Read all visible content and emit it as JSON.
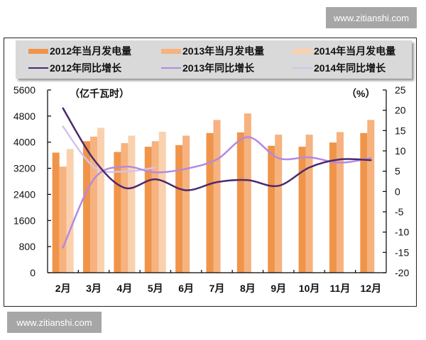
{
  "watermarks": {
    "top": "www.zitianshi.com",
    "bottom": "www.zitianshi.com"
  },
  "legend": [
    {
      "label": "2012年当月发电量",
      "kind": "bar",
      "color": "#f0944a"
    },
    {
      "label": "2013年当月发电量",
      "kind": "bar",
      "color": "#f6b27f"
    },
    {
      "label": "2014年当月发电量",
      "kind": "bar",
      "color": "#fad1af"
    },
    {
      "label": "2012年同比增长",
      "kind": "line",
      "color": "#4b2a6e"
    },
    {
      "label": "2013年同比增长",
      "kind": "line",
      "color": "#b28ae0"
    },
    {
      "label": "2014年同比增长",
      "kind": "line",
      "color": "#d3c3ec"
    }
  ],
  "axes": {
    "left_unit": "（亿千瓦时）",
    "right_unit": "（%）",
    "left_ticks": [
      "0",
      "800",
      "1600",
      "2400",
      "3200",
      "4000",
      "4800",
      "5600"
    ],
    "right_ticks": [
      "-20",
      "-15",
      "-10",
      "-5",
      "0",
      "5",
      "10",
      "15",
      "20",
      "25"
    ]
  },
  "chart_data": {
    "type": "bar",
    "title": "",
    "categories": [
      "2月",
      "3月",
      "4月",
      "5月",
      "6月",
      "7月",
      "8月",
      "9月",
      "10月",
      "11月",
      "12月"
    ],
    "xlabel": "",
    "ylabel": "亿千瓦时",
    "ylim": [
      0,
      5600
    ],
    "y2label": "%",
    "y2lim": [
      -20,
      25
    ],
    "grid": false,
    "legend_position": "top",
    "series": [
      {
        "name": "2012年当月发电量",
        "type": "bar",
        "axis": "left",
        "color": "#f0944a",
        "values": [
          3680,
          4030,
          3700,
          3860,
          3910,
          4280,
          4300,
          3890,
          3860,
          3990,
          4280
        ]
      },
      {
        "name": "2013年当月发电量",
        "type": "bar",
        "axis": "left",
        "color": "#f6b27f",
        "values": [
          3250,
          4170,
          3970,
          4030,
          4200,
          4680,
          4880,
          4230,
          4230,
          4310,
          4680
        ]
      },
      {
        "name": "2014年当月发电量",
        "type": "bar",
        "axis": "left",
        "color": "#fad1af",
        "values": [
          3790,
          4440,
          4200,
          4320,
          null,
          null,
          null,
          null,
          null,
          null,
          null
        ]
      },
      {
        "name": "2012年同比增长",
        "type": "line",
        "axis": "right",
        "color": "#4b2a6e",
        "values": [
          20.5,
          7.9,
          0.9,
          3.0,
          0.3,
          2.3,
          2.8,
          1.4,
          5.9,
          7.9,
          7.7
        ]
      },
      {
        "name": "2013年同比增长",
        "type": "line",
        "axis": "right",
        "color": "#b28ae0",
        "values": [
          -13.8,
          3.0,
          6.1,
          4.7,
          5.6,
          7.9,
          13.4,
          8.2,
          8.4,
          7.1,
          8.2
        ]
      },
      {
        "name": "2014年同比增长",
        "type": "line",
        "axis": "right",
        "color": "#d3c3ec",
        "values": [
          16.0,
          6.1,
          4.9,
          5.9,
          null,
          null,
          null,
          null,
          null,
          null,
          null
        ]
      }
    ]
  }
}
